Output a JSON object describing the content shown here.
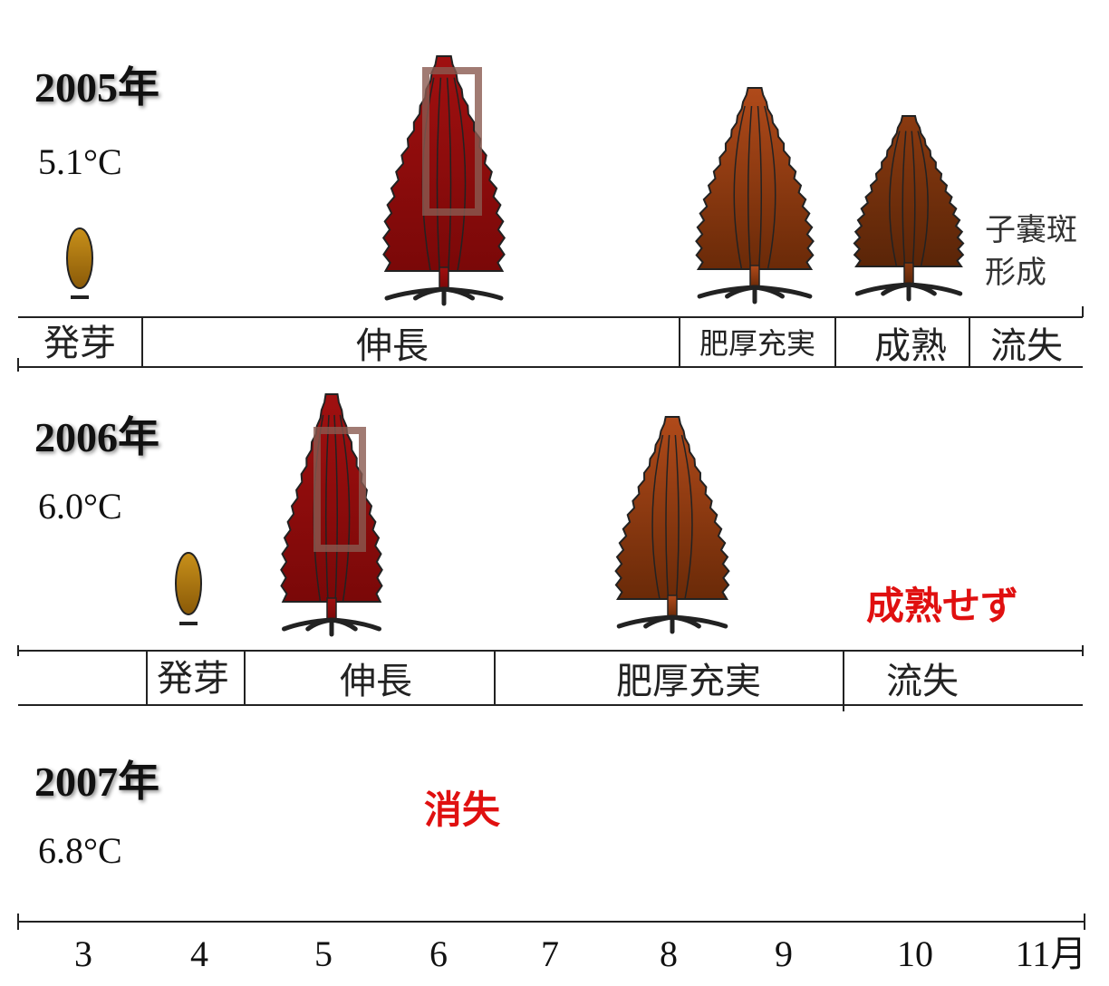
{
  "rows": [
    {
      "year": "2005年",
      "temperature": "5.1°C",
      "stages": [
        "発芽",
        "伸長",
        "肥厚充実",
        "成熟",
        "流失"
      ],
      "note": [
        "子嚢斑",
        "形成"
      ]
    },
    {
      "year": "2006年",
      "temperature": "6.0°C",
      "stages": [
        "発芽",
        "伸長",
        "肥厚充実",
        "流失"
      ],
      "note": [
        "成熟せず"
      ]
    },
    {
      "year": "2007年",
      "temperature": "6.8°C",
      "note": [
        "消失"
      ]
    }
  ],
  "months": [
    "3",
    "4",
    "5",
    "6",
    "7",
    "8",
    "9",
    "10",
    "11月"
  ]
}
